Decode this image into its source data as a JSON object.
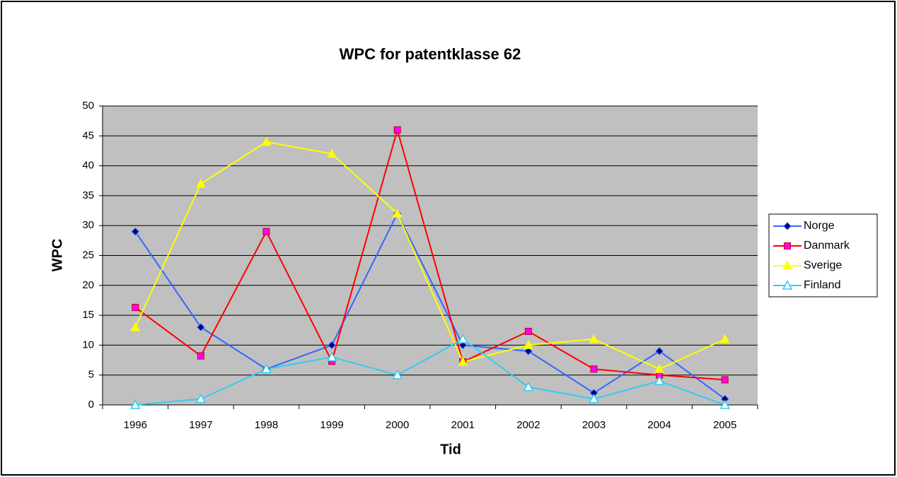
{
  "chart_data": {
    "type": "line",
    "title": "WPC for patentklasse 62",
    "x_label": "Tid",
    "y_label": "WPC",
    "categories": [
      "1996",
      "1997",
      "1998",
      "1999",
      "2000",
      "2001",
      "2002",
      "2003",
      "2004",
      "2005"
    ],
    "series": [
      {
        "name": "Norge",
        "color": "#3366ff",
        "marker": "diamond",
        "marker_color": "#000080",
        "values": [
          29,
          13,
          6,
          10,
          32,
          10,
          9,
          2,
          9,
          1
        ]
      },
      {
        "name": "Danmark",
        "color": "#ff0000",
        "marker": "square",
        "marker_color": "#ff00ff",
        "values": [
          16.3,
          8.2,
          29,
          7.3,
          46,
          7.2,
          12.3,
          6,
          5,
          4.2
        ]
      },
      {
        "name": "Sverige",
        "color": "#ffff00",
        "marker": "triangle",
        "marker_color": "#ffff00",
        "values": [
          13,
          37,
          44,
          42,
          32,
          7.2,
          10,
          11,
          6,
          11
        ]
      },
      {
        "name": "Finland",
        "color": "#33ccee",
        "marker": "triangle-open",
        "marker_color": "#33ccee",
        "values": [
          0,
          1,
          6,
          8,
          5,
          11,
          3,
          1,
          4,
          0
        ]
      }
    ],
    "ylim": [
      0,
      50
    ],
    "yticks": [
      0,
      5,
      10,
      15,
      20,
      25,
      30,
      35,
      40,
      45,
      50
    ],
    "grid": true,
    "legend": "right"
  }
}
